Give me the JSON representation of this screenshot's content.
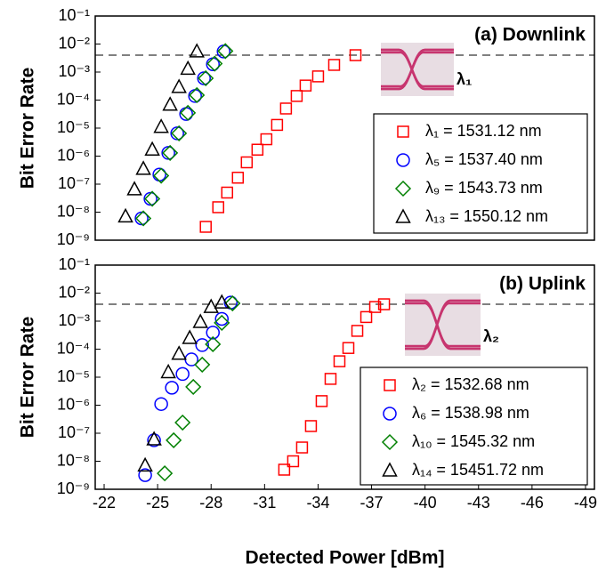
{
  "chart_data": [
    {
      "type": "scatter",
      "title": "(a) Downlink",
      "y_label": "Bit Error Rate",
      "log_y": true,
      "xlim": [
        -21.5,
        -49.5
      ],
      "ylim": [
        1e-09,
        0.1
      ],
      "yticks": [
        {
          "value": 1e-09,
          "label": "10⁻⁹"
        },
        {
          "value": 1e-08,
          "label": "10⁻⁸"
        },
        {
          "value": 1e-07,
          "label": "10⁻⁷"
        },
        {
          "value": 1e-06,
          "label": "10⁻⁶"
        },
        {
          "value": 1e-05,
          "label": "10⁻⁵"
        },
        {
          "value": 0.0001,
          "label": "10⁻⁴"
        },
        {
          "value": 0.001,
          "label": "10⁻³"
        },
        {
          "value": 0.01,
          "label": "10⁻²"
        },
        {
          "value": 0.1,
          "label": "10⁻¹"
        }
      ],
      "reference_line": 0.004,
      "eye_label": "λ₁",
      "eye_label_color": "#000000",
      "series": [
        {
          "name": "λ₁ = 1531.12 nm",
          "color": "#ff0000",
          "marker": "square",
          "x": [
            -27.7,
            -28.4,
            -28.9,
            -29.5,
            -30.0,
            -30.6,
            -31.1,
            -31.7,
            -32.2,
            -32.8,
            -33.3,
            -34.0,
            -34.9,
            -36.1
          ],
          "values": [
            3e-09,
            1.5e-08,
            5e-08,
            1.7e-07,
            6e-07,
            1.7e-06,
            4e-06,
            1.3e-05,
            5e-05,
            0.00014,
            0.00033,
            0.0007,
            0.0018,
            0.004
          ]
        },
        {
          "name": "λ₅ = 1537.40 nm",
          "color": "#0000ff",
          "marker": "circle",
          "x": [
            -24.1,
            -24.6,
            -25.1,
            -25.6,
            -26.1,
            -26.6,
            -27.1,
            -27.6,
            -28.1,
            -28.7
          ],
          "values": [
            6e-09,
            3e-08,
            2.2e-07,
            1.3e-06,
            6.5e-06,
            3.2e-05,
            0.00014,
            0.0006,
            0.0019,
            0.0054
          ]
        },
        {
          "name": "λ₉ = 1543.73 nm",
          "color": "#008000",
          "marker": "diamond",
          "x": [
            -24.2,
            -24.7,
            -25.2,
            -25.7,
            -26.2,
            -26.7,
            -27.2,
            -27.7,
            -28.2,
            -28.8
          ],
          "values": [
            6e-09,
            3e-08,
            2e-07,
            1.3e-06,
            6.5e-06,
            3.5e-05,
            0.00015,
            0.0006,
            0.002,
            0.0056
          ]
        },
        {
          "name": "λ₁₃ = 1550.12 nm",
          "color": "#000000",
          "marker": "triangle",
          "x": [
            -23.2,
            -23.7,
            -24.2,
            -24.7,
            -25.2,
            -25.7,
            -26.2,
            -26.7,
            -27.2
          ],
          "values": [
            7e-09,
            6.5e-08,
            3.5e-07,
            1.7e-06,
            1.1e-05,
            6.8e-05,
            0.00029,
            0.0013,
            0.0054
          ]
        }
      ]
    },
    {
      "type": "scatter",
      "title": "(b) Uplink",
      "y_label": "Bit Error Rate",
      "x_label": "Detected Power [dBm]",
      "log_y": true,
      "xlim": [
        -21.5,
        -49.5
      ],
      "ylim": [
        1e-09,
        0.1
      ],
      "xticks": [
        -22,
        -25,
        -28,
        -31,
        -34,
        -37,
        -40,
        -43,
        -46,
        -49
      ],
      "yticks": [
        {
          "value": 1e-09,
          "label": "10⁻⁹"
        },
        {
          "value": 1e-08,
          "label": "10⁻⁸"
        },
        {
          "value": 1e-07,
          "label": "10⁻⁷"
        },
        {
          "value": 1e-06,
          "label": "10⁻⁶"
        },
        {
          "value": 1e-05,
          "label": "10⁻⁵"
        },
        {
          "value": 0.0001,
          "label": "10⁻⁴"
        },
        {
          "value": 0.001,
          "label": "10⁻³"
        },
        {
          "value": 0.01,
          "label": "10⁻²"
        },
        {
          "value": 0.1,
          "label": "10⁻¹"
        }
      ],
      "reference_line": 0.004,
      "eye_label": "λ₂",
      "eye_label_color": "#ff0000",
      "series": [
        {
          "name": "λ₂ = 1532.68 nm",
          "color": "#ff0000",
          "marker": "square",
          "x": [
            -32.1,
            -32.6,
            -33.1,
            -33.6,
            -34.2,
            -34.7,
            -35.2,
            -35.7,
            -36.2,
            -36.7,
            -37.2,
            -37.7
          ],
          "values": [
            5e-09,
            1e-08,
            3.1e-08,
            1.8e-07,
            1.4e-06,
            8.7e-06,
            3.7e-05,
            0.00011,
            0.00045,
            0.0014,
            0.0032,
            0.004
          ]
        },
        {
          "name": "λ₆ = 1538.98 nm",
          "color": "#0000ff",
          "marker": "circle",
          "x": [
            -24.3,
            -24.8,
            -25.2,
            -25.8,
            -26.4,
            -26.9,
            -27.5,
            -28.1,
            -28.6,
            -29.1
          ],
          "values": [
            3.2e-09,
            5.6e-08,
            1.1e-06,
            4.2e-06,
            1.3e-05,
            4.3e-05,
            0.00014,
            0.00039,
            0.0012,
            0.0046
          ]
        },
        {
          "name": "λ₁₀ = 1545.32 nm",
          "color": "#008000",
          "marker": "diamond",
          "x": [
            -25.4,
            -25.9,
            -26.4,
            -27.0,
            -27.5,
            -28.1,
            -28.6,
            -29.2
          ],
          "values": [
            3.7e-09,
            5.6e-08,
            2.4e-07,
            4.5e-06,
            2.8e-05,
            0.00015,
            0.00087,
            0.0043
          ]
        },
        {
          "name": "λ₁₄ = 15451.72 nm",
          "color": "#000000",
          "marker": "triangle",
          "x": [
            -24.3,
            -24.8,
            -25.6,
            -26.2,
            -26.8,
            -27.4,
            -28.0,
            -28.6
          ],
          "values": [
            7e-09,
            6e-08,
            1.5e-05,
            6.8e-05,
            0.00025,
            0.00093,
            0.0032,
            0.0046
          ]
        }
      ]
    }
  ]
}
